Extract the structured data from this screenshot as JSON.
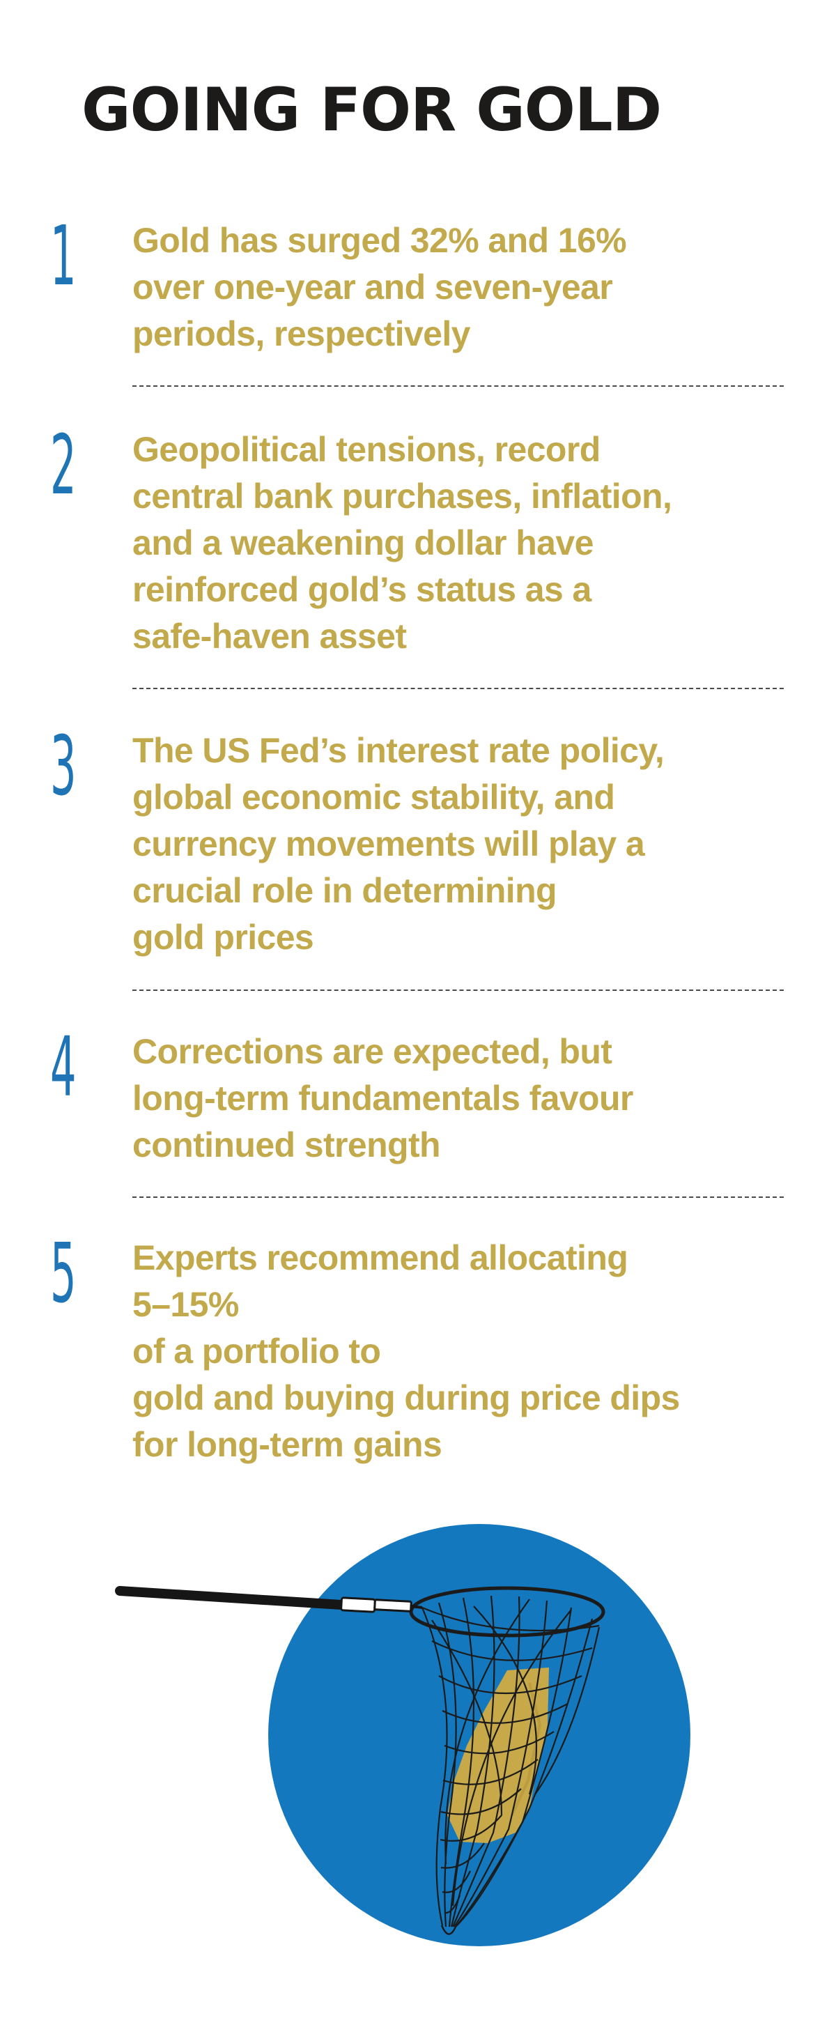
{
  "title": "GOING FOR GOLD",
  "colors": {
    "title": "#1d1a1a",
    "number": "#1f74b6",
    "text_gold": "#c2a94c",
    "circle_blue": "#1478bf",
    "divider": "#4a4a4a"
  },
  "points": [
    {
      "number": "1",
      "text": "Gold has surged 32% and 16%\nover one-year and seven-year\nperiods, respectively"
    },
    {
      "number": "2",
      "text": "Geopolitical tensions, record\ncentral bank purchases, inflation,\nand a weakening dollar have\nreinforced gold’s status as a\nsafe-haven asset"
    },
    {
      "number": "3",
      "text": "The US Fed’s interest rate policy,\nglobal economic stability, and\ncurrency movements will play a\ncrucial role in determining\ngold prices"
    },
    {
      "number": "4",
      "text": "Corrections are expected, but\nlong-term fundamentals favour\ncontinued strength"
    },
    {
      "number": "5",
      "text": "Experts recommend allocating\n5–15%\nof a portfolio to\ngold and buying during price dips\nfor long-term gains"
    }
  ],
  "illustration": {
    "icon": "gold-net-icon"
  }
}
